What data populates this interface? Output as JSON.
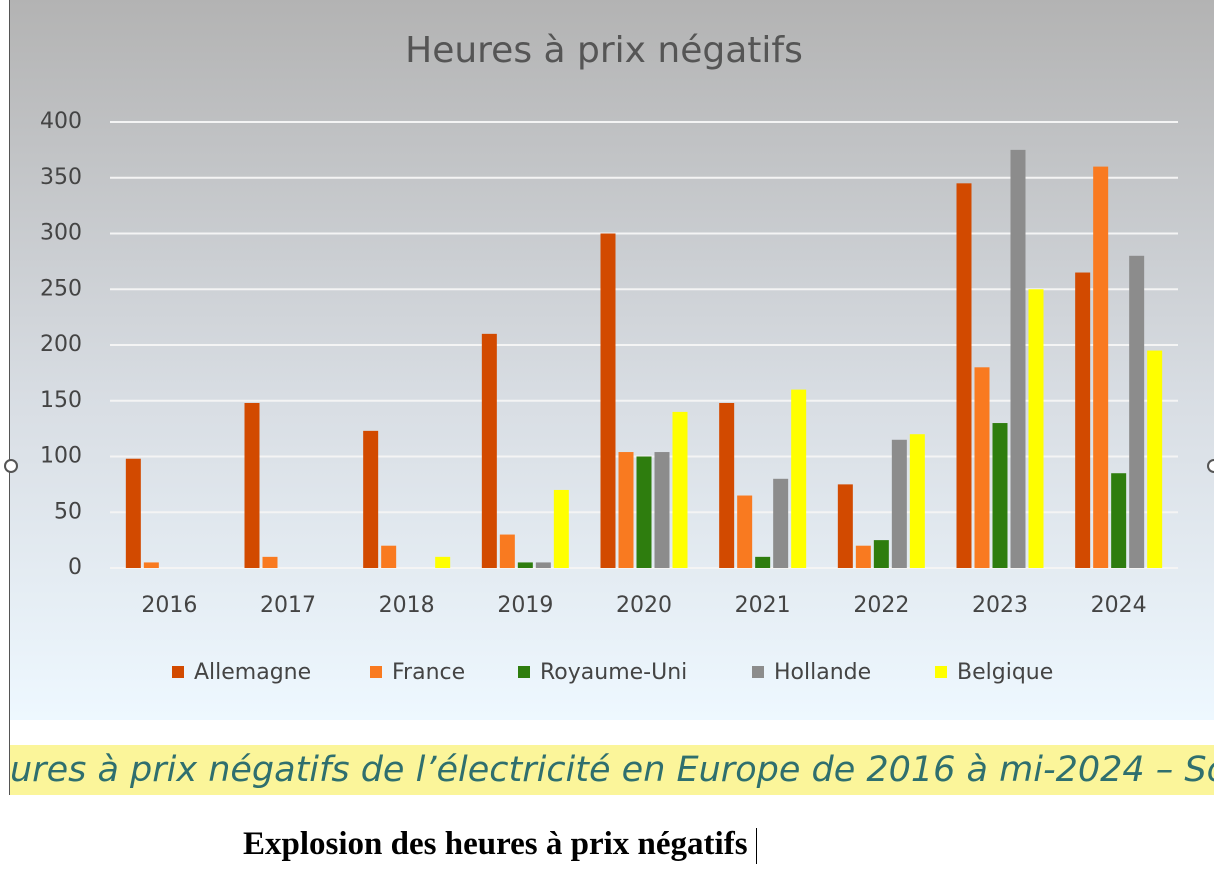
{
  "chart_data": {
    "type": "bar",
    "title": "Heures à prix négatifs",
    "categories": [
      "2016",
      "2017",
      "2018",
      "2019",
      "2020",
      "2021",
      "2022",
      "2023",
      "2024"
    ],
    "series": [
      {
        "name": "Allemagne",
        "color": "#d24a00",
        "values": [
          98,
          148,
          123,
          210,
          300,
          148,
          75,
          345,
          265
        ]
      },
      {
        "name": "France",
        "color": "#f97a20",
        "values": [
          5,
          10,
          20,
          30,
          104,
          65,
          20,
          180,
          360
        ]
      },
      {
        "name": "Royaume-Uni",
        "color": "#2e7d0e",
        "values": [
          0,
          0,
          0,
          5,
          100,
          10,
          25,
          130,
          85
        ]
      },
      {
        "name": "Hollande",
        "color": "#8c8c8c",
        "values": [
          0,
          0,
          0,
          5,
          104,
          80,
          115,
          375,
          280
        ]
      },
      {
        "name": "Belgique",
        "color": "#ffff00",
        "values": [
          0,
          0,
          10,
          70,
          140,
          160,
          120,
          250,
          195
        ]
      }
    ],
    "ylim": [
      0,
      400
    ],
    "yticks": [
      0,
      50,
      100,
      150,
      200,
      250,
      300,
      350,
      400
    ],
    "grid": true,
    "legend": "bottom"
  },
  "caption": "ures à prix négatifs de l’électricité en Europe de 2016 à mi-2024 – Sou",
  "heading": "Explosion des heures à prix négatifs"
}
